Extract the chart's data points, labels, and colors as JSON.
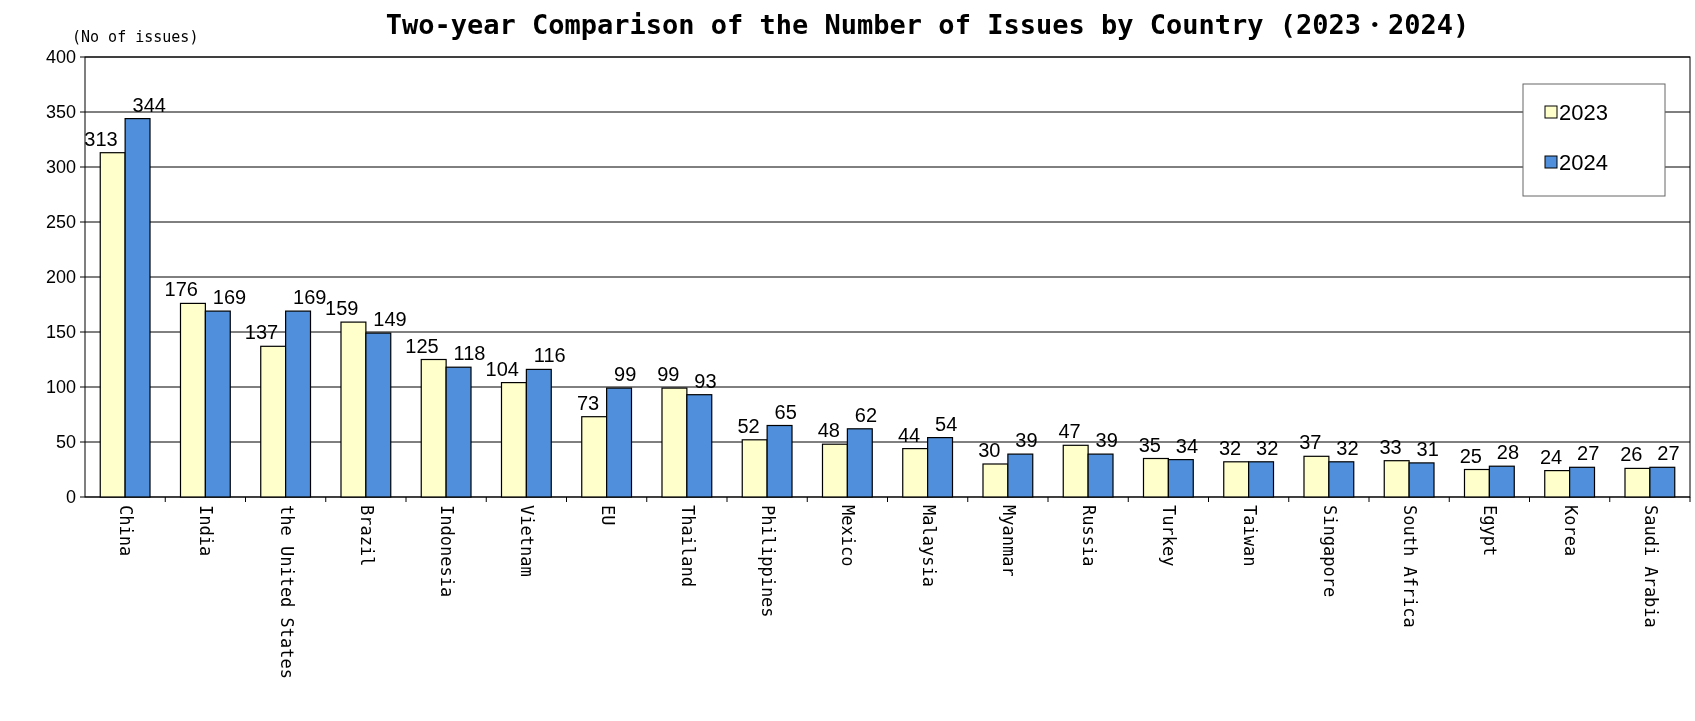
{
  "chart_data": {
    "type": "bar",
    "title": "Two-year Comparison of the Number of Issues by Country (2023・2024)",
    "ylabel": "(No of issues)",
    "categories": [
      "China",
      "India",
      "the United States",
      "Brazil",
      "Indonesia",
      "Vietnam",
      "EU",
      "Thailand",
      "Philippines",
      "Mexico",
      "Malaysia",
      "Myanmar",
      "Russia",
      "Turkey",
      "Taiwan",
      "Singapore",
      "South Africa",
      "Egypt",
      "Korea",
      "Saudi Arabia"
    ],
    "series": [
      {
        "name": "2023",
        "color": "#ffffcc",
        "values": [
          313,
          176,
          137,
          159,
          125,
          104,
          73,
          99,
          52,
          48,
          44,
          30,
          47,
          35,
          32,
          37,
          33,
          25,
          24,
          26
        ]
      },
      {
        "name": "2024",
        "color": "#4f8fdb",
        "values": [
          344,
          169,
          169,
          149,
          118,
          116,
          99,
          93,
          65,
          62,
          54,
          39,
          39,
          34,
          32,
          32,
          31,
          28,
          27,
          27
        ]
      }
    ],
    "ylim": [
      0,
      400
    ],
    "yticks": [
      0,
      50,
      100,
      150,
      200,
      250,
      300,
      350,
      400
    ],
    "grid": "y",
    "legend": "top right",
    "data_labels": true
  }
}
